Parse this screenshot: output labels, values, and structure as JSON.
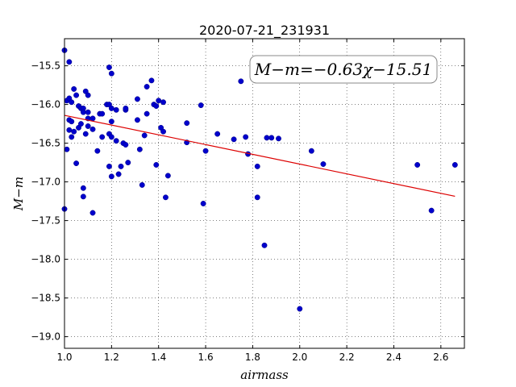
{
  "chart_data": {
    "type": "scatter",
    "title": "2020-07-21_231931",
    "xlabel": "airmass",
    "ylabel": "M−m",
    "xlim": [
      1.0,
      2.7
    ],
    "ylim": [
      -19.15,
      -15.15
    ],
    "xticks": [
      1.0,
      1.2,
      1.4,
      1.6,
      1.8,
      2.0,
      2.2,
      2.4,
      2.6
    ],
    "xtick_labels": [
      "1.0",
      "1.2",
      "1.4",
      "1.6",
      "1.8",
      "2.0",
      "2.2",
      "2.4",
      "2.6"
    ],
    "yticks": [
      -15.5,
      -16.0,
      -16.5,
      -17.0,
      -17.5,
      -18.0,
      -18.5,
      -19.0
    ],
    "ytick_labels": [
      "−15.5",
      "−16.0",
      "−16.5",
      "−17.0",
      "−17.5",
      "−18.0",
      "−18.5",
      "−19.0"
    ],
    "grid": true,
    "annotation": "M−m=−0.63χ−15.51",
    "annotation_position": "top-right",
    "point_color": "#0000cc",
    "fit_line": {
      "slope": -0.63,
      "intercept": -15.51,
      "x_range": [
        1.0,
        2.66
      ],
      "color": "#dd0000"
    },
    "points": [
      {
        "x": 1.0,
        "y": -15.3
      },
      {
        "x": 1.0,
        "y": -17.35
      },
      {
        "x": 1.01,
        "y": -16.58
      },
      {
        "x": 1.01,
        "y": -15.95
      },
      {
        "x": 1.02,
        "y": -15.45
      },
      {
        "x": 1.02,
        "y": -15.92
      },
      {
        "x": 1.02,
        "y": -16.2
      },
      {
        "x": 1.02,
        "y": -16.33
      },
      {
        "x": 1.03,
        "y": -16.22
      },
      {
        "x": 1.03,
        "y": -15.97
      },
      {
        "x": 1.03,
        "y": -16.42
      },
      {
        "x": 1.04,
        "y": -16.35
      },
      {
        "x": 1.04,
        "y": -15.8
      },
      {
        "x": 1.05,
        "y": -15.88
      },
      {
        "x": 1.05,
        "y": -16.76
      },
      {
        "x": 1.06,
        "y": -16.02
      },
      {
        "x": 1.06,
        "y": -16.3
      },
      {
        "x": 1.07,
        "y": -16.25
      },
      {
        "x": 1.07,
        "y": -16.05
      },
      {
        "x": 1.08,
        "y": -16.05
      },
      {
        "x": 1.08,
        "y": -16.1
      },
      {
        "x": 1.08,
        "y": -17.08
      },
      {
        "x": 1.08,
        "y": -17.19
      },
      {
        "x": 1.09,
        "y": -15.83
      },
      {
        "x": 1.09,
        "y": -16.38
      },
      {
        "x": 1.1,
        "y": -16.18
      },
      {
        "x": 1.1,
        "y": -16.1
      },
      {
        "x": 1.1,
        "y": -16.28
      },
      {
        "x": 1.1,
        "y": -15.88
      },
      {
        "x": 1.12,
        "y": -16.18
      },
      {
        "x": 1.12,
        "y": -16.32
      },
      {
        "x": 1.12,
        "y": -17.4
      },
      {
        "x": 1.14,
        "y": -16.6
      },
      {
        "x": 1.15,
        "y": -16.12
      },
      {
        "x": 1.16,
        "y": -16.12
      },
      {
        "x": 1.16,
        "y": -16.42
      },
      {
        "x": 1.18,
        "y": -16.0
      },
      {
        "x": 1.19,
        "y": -16.0
      },
      {
        "x": 1.19,
        "y": -16.38
      },
      {
        "x": 1.19,
        "y": -16.8
      },
      {
        "x": 1.19,
        "y": -15.52
      },
      {
        "x": 1.2,
        "y": -15.6
      },
      {
        "x": 1.2,
        "y": -16.05
      },
      {
        "x": 1.2,
        "y": -16.22
      },
      {
        "x": 1.2,
        "y": -16.42
      },
      {
        "x": 1.2,
        "y": -16.93
      },
      {
        "x": 1.22,
        "y": -16.07
      },
      {
        "x": 1.22,
        "y": -16.47
      },
      {
        "x": 1.23,
        "y": -16.9
      },
      {
        "x": 1.24,
        "y": -16.8
      },
      {
        "x": 1.25,
        "y": -16.5
      },
      {
        "x": 1.26,
        "y": -16.07
      },
      {
        "x": 1.26,
        "y": -16.05
      },
      {
        "x": 1.26,
        "y": -16.52
      },
      {
        "x": 1.27,
        "y": -16.75
      },
      {
        "x": 1.31,
        "y": -15.93
      },
      {
        "x": 1.31,
        "y": -16.2
      },
      {
        "x": 1.32,
        "y": -16.58
      },
      {
        "x": 1.33,
        "y": -17.04
      },
      {
        "x": 1.34,
        "y": -16.4
      },
      {
        "x": 1.35,
        "y": -16.12
      },
      {
        "x": 1.35,
        "y": -15.77
      },
      {
        "x": 1.37,
        "y": -15.69
      },
      {
        "x": 1.38,
        "y": -16.0
      },
      {
        "x": 1.39,
        "y": -16.78
      },
      {
        "x": 1.39,
        "y": -16.02
      },
      {
        "x": 1.4,
        "y": -15.95
      },
      {
        "x": 1.41,
        "y": -16.3
      },
      {
        "x": 1.42,
        "y": -16.35
      },
      {
        "x": 1.42,
        "y": -15.97
      },
      {
        "x": 1.43,
        "y": -17.2
      },
      {
        "x": 1.44,
        "y": -16.92
      },
      {
        "x": 1.52,
        "y": -16.24
      },
      {
        "x": 1.52,
        "y": -16.49
      },
      {
        "x": 1.58,
        "y": -16.01
      },
      {
        "x": 1.59,
        "y": -17.28
      },
      {
        "x": 1.6,
        "y": -16.6
      },
      {
        "x": 1.65,
        "y": -16.38
      },
      {
        "x": 1.72,
        "y": -16.45
      },
      {
        "x": 1.75,
        "y": -15.7
      },
      {
        "x": 1.77,
        "y": -16.42
      },
      {
        "x": 1.78,
        "y": -16.64
      },
      {
        "x": 1.82,
        "y": -17.2
      },
      {
        "x": 1.82,
        "y": -16.8
      },
      {
        "x": 1.85,
        "y": -17.82
      },
      {
        "x": 1.86,
        "y": -16.43
      },
      {
        "x": 1.88,
        "y": -16.43
      },
      {
        "x": 1.91,
        "y": -16.44
      },
      {
        "x": 2.0,
        "y": -18.64
      },
      {
        "x": 2.05,
        "y": -16.6
      },
      {
        "x": 2.1,
        "y": -16.77
      },
      {
        "x": 2.5,
        "y": -16.78
      },
      {
        "x": 2.56,
        "y": -17.37
      },
      {
        "x": 2.66,
        "y": -16.78
      }
    ]
  }
}
